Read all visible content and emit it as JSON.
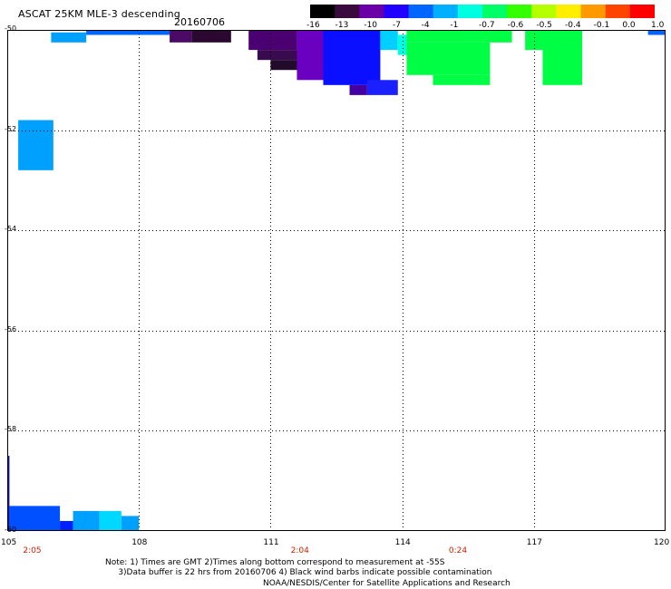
{
  "title": "ASCAT 25KM MLE-3 descending",
  "date": "20160706",
  "colorbar": {
    "labels": [
      "-16",
      "-13",
      "-10",
      "-7",
      "-4",
      "-1",
      "-0.7",
      "-0.6",
      "-0.5",
      "-0.4",
      "-0.1",
      "0.0",
      "1.0"
    ],
    "colors": [
      "#000000",
      "#3a0a3f",
      "#6a00a8",
      "#2200ff",
      "#0066ff",
      "#00b0ff",
      "#00ffe0",
      "#00ff66",
      "#33ff00",
      "#b4ff00",
      "#ffee00",
      "#ff9900",
      "#ff4400",
      "#ff0000"
    ]
  },
  "map": {
    "x_axis_labels": [
      "105",
      "108",
      "111",
      "114",
      "117",
      "120"
    ],
    "y_axis_labels": [
      "-50",
      "-52",
      "-54",
      "-56",
      "-58",
      "-60"
    ],
    "time_labels": [
      "2:05",
      "2:04",
      "0:24"
    ],
    "lon_range": [
      105,
      120
    ],
    "lat_range": [
      -60,
      -50
    ],
    "swaths": [
      {
        "name": "mle-top-band",
        "cells": [
          {
            "lon": [
              106.0,
              106.8
            ],
            "lat": [
              -50.25,
              -50.05
            ],
            "color": "#00a0ff"
          },
          {
            "lon": [
              106.8,
              108.7
            ],
            "lat": [
              -50.1,
              -50.0
            ],
            "color": "#0066ff"
          },
          {
            "lon": [
              108.7,
              109.2
            ],
            "lat": [
              -50.25,
              -50.0
            ],
            "color": "#4a0a66"
          },
          {
            "lon": [
              109.2,
              110.1
            ],
            "lat": [
              -50.25,
              -50.0
            ],
            "color": "#2a0830"
          }
        ]
      },
      {
        "name": "mle-central-band",
        "cells": [
          {
            "lon": [
              110.5,
              111.6
            ],
            "lat": [
              -50.4,
              -50.0
            ],
            "color": "#4a0070"
          },
          {
            "lon": [
              110.7,
              111.9
            ],
            "lat": [
              -50.6,
              -50.4
            ],
            "color": "#3a0a50"
          },
          {
            "lon": [
              111.0,
              112.2
            ],
            "lat": [
              -50.8,
              -50.6
            ],
            "color": "#220a2a"
          },
          {
            "lon": [
              111.6,
              112.4
            ],
            "lat": [
              -50.0,
              -51.0
            ],
            "color": "#6a00c0"
          },
          {
            "lon": [
              112.2,
              113.5
            ],
            "lat": [
              -50.0,
              -51.1
            ],
            "color": "#0a10ff"
          },
          {
            "lon": [
              112.8,
              113.2
            ],
            "lat": [
              -51.1,
              -51.3
            ],
            "color": "#4400a0"
          },
          {
            "lon": [
              113.2,
              113.9
            ],
            "lat": [
              -51.0,
              -51.3
            ],
            "color": "#1a20ff"
          },
          {
            "lon": [
              113.5,
              113.9
            ],
            "lat": [
              -50.0,
              -50.4
            ],
            "color": "#00d0ff"
          },
          {
            "lon": [
              113.9,
              114.1
            ],
            "lat": [
              -50.1,
              -50.5
            ],
            "color": "#00ffe0"
          },
          {
            "lon": [
              114.1,
              116.5
            ],
            "lat": [
              -50.0,
              -50.25
            ],
            "color": "#00ff44"
          },
          {
            "lon": [
              114.1,
              116.0
            ],
            "lat": [
              -50.25,
              -50.9
            ],
            "color": "#00ff44"
          },
          {
            "lon": [
              114.7,
              116.0
            ],
            "lat": [
              -50.9,
              -51.1
            ],
            "color": "#00ff44"
          },
          {
            "lon": [
              116.8,
              117.2
            ],
            "lat": [
              -50.0,
              -50.4
            ],
            "color": "#00ff44"
          },
          {
            "lon": [
              117.2,
              118.1
            ],
            "lat": [
              -50.0,
              -51.1
            ],
            "color": "#00ff44"
          },
          {
            "lon": [
              119.6,
              120.0
            ],
            "lat": [
              -50.0,
              -50.1
            ],
            "color": "#0066ff"
          }
        ]
      },
      {
        "name": "mle-left-patch",
        "cells": [
          {
            "lon": [
              105.25,
              106.05
            ],
            "lat": [
              -51.8,
              -52.8
            ],
            "color": "#00a0ff"
          }
        ]
      },
      {
        "name": "mle-bottom-left",
        "cells": [
          {
            "lon": [
              105.0,
              105.05
            ],
            "lat": [
              -58.5,
              -60.0
            ],
            "color": "#1010c0"
          },
          {
            "lon": [
              105.05,
              106.2
            ],
            "lat": [
              -59.5,
              -60.0
            ],
            "color": "#0050ff"
          },
          {
            "lon": [
              106.2,
              106.5
            ],
            "lat": [
              -59.8,
              -60.0
            ],
            "color": "#0020ff"
          },
          {
            "lon": [
              106.5,
              107.1
            ],
            "lat": [
              -59.6,
              -60.0
            ],
            "color": "#00a0ff"
          },
          {
            "lon": [
              107.1,
              107.6
            ],
            "lat": [
              -59.6,
              -60.0
            ],
            "color": "#00d8ff"
          },
          {
            "lon": [
              107.6,
              108.0
            ],
            "lat": [
              -59.7,
              -60.0
            ],
            "color": "#00a0ff"
          }
        ]
      }
    ]
  },
  "notes": {
    "line1": "Note: 1) Times are GMT 2)Times along bottom correspond to measurement at -55S",
    "line2": "3)Data buffer is 22 hrs from 20160706 4) Black wind barbs indicate possible contamination",
    "credit": "NOAA/NESDIS/Center for Satellite Applications and Research"
  }
}
